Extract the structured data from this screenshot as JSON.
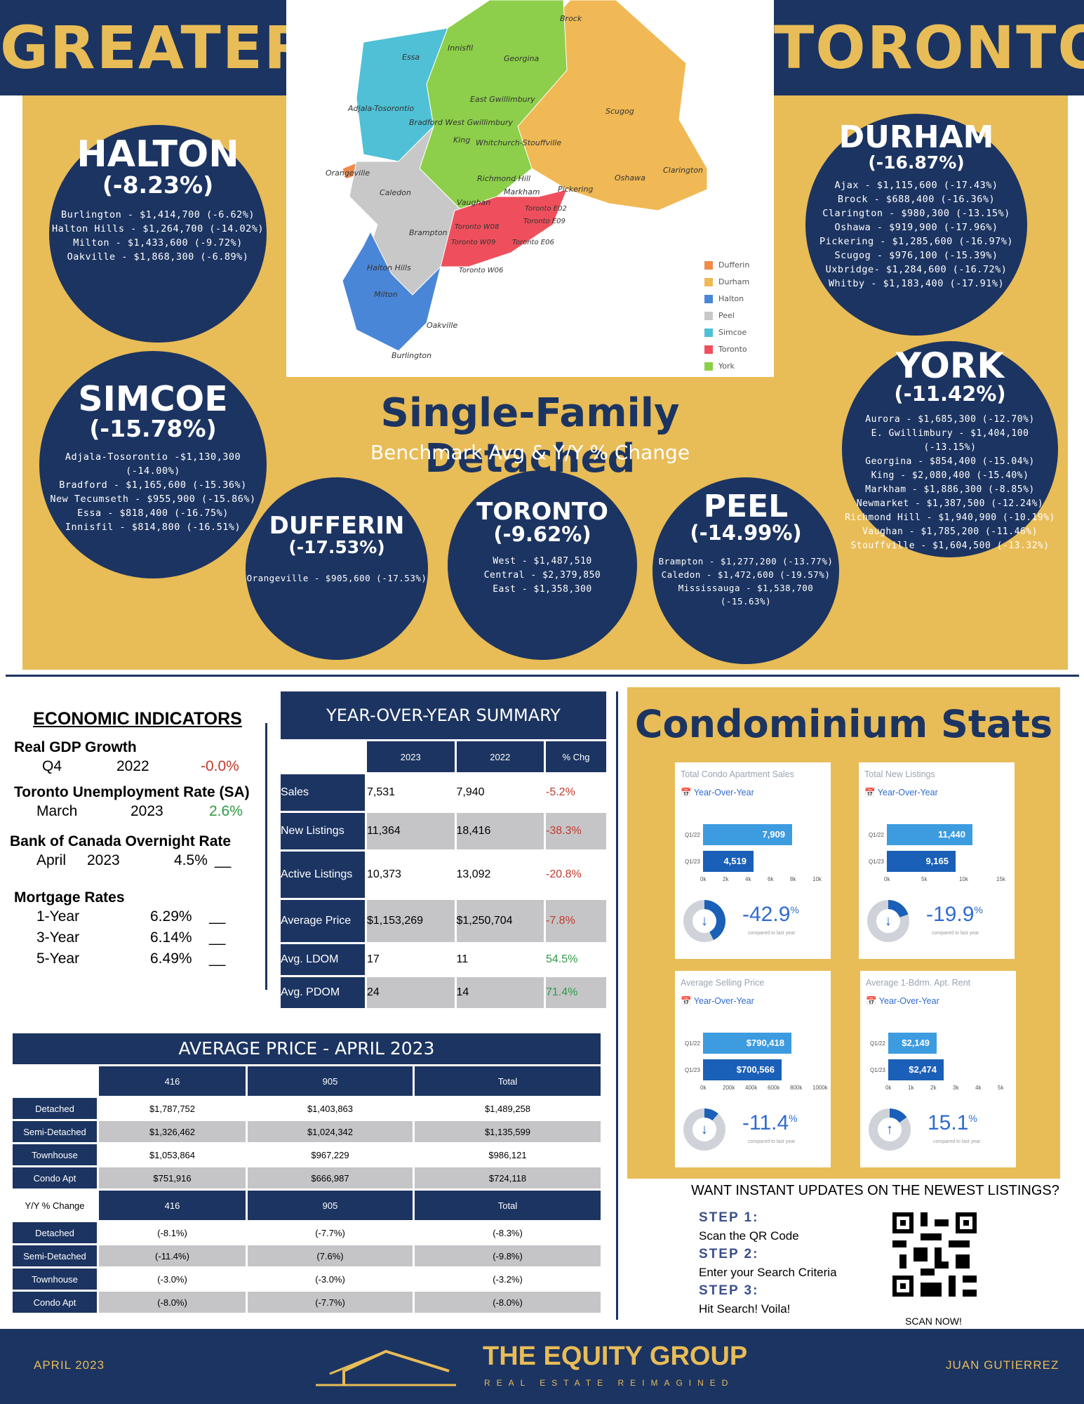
{
  "header": {
    "left_word": "GREATER",
    "right_word": "TORONTO"
  },
  "map": {
    "labels": [
      "Brock",
      "Innisfil",
      "Essa",
      "Georgina",
      "Adjala-Tosorontio",
      "East Gwillimbury",
      "Bradford West Gwillimbury",
      "Scugog",
      "King",
      "Whitchurch-Stouffville",
      "Orangeville",
      "Caledon",
      "Richmond Hill",
      "Markham",
      "Vaughan",
      "Pickering",
      "Oshawa",
      "Clarington",
      "Toronto E02",
      "Toronto E09",
      "Brampton",
      "Toronto W08",
      "Toronto W09",
      "Toronto E06",
      "Halton Hills",
      "Toronto W06",
      "Milton",
      "Oakville",
      "Burlington"
    ],
    "legend": [
      {
        "name": "Dufferin",
        "color": "#f08a4b"
      },
      {
        "name": "Durham",
        "color": "#f0b955"
      },
      {
        "name": "Halton",
        "color": "#4a86d8"
      },
      {
        "name": "Peel",
        "color": "#c8c8c8"
      },
      {
        "name": "Simcoe",
        "color": "#4fc0d6"
      },
      {
        "name": "Toronto",
        "color": "#ef4f5c"
      },
      {
        "name": "York",
        "color": "#8dcf4a"
      }
    ]
  },
  "sfd": {
    "title": "Single-Family Detached",
    "subtitle": "Benchmark Avg & Y/Y % Change"
  },
  "regions": {
    "halton": {
      "name": "HALTON",
      "pct": "(-8.23%)",
      "items": [
        "Burlington - $1,414,700 (-6.62%)",
        "Halton Hills - $1,264,700 (-14.02%)",
        "Milton - $1,433,600 (-9.72%)",
        "Oakville - $1,868,300 (-6.89%)"
      ]
    },
    "durham": {
      "name": "DURHAM",
      "pct": "(-16.87%)",
      "items": [
        "Ajax - $1,115,600 (-17.43%)",
        "Brock - $688,400 (-16.36%)",
        "Clarington - $980,300 (-13.15%)",
        "Oshawa - $919,900 (-17.96%)",
        "Pickering - $1,285,600 (-16.97%)",
        "Scugog - $976,100 (-15.39%)",
        "Uxbridge- $1,284,600 (-16.72%)",
        "Whitby - $1,183,400 (-17.91%)"
      ]
    },
    "simcoe": {
      "name": "SIMCOE",
      "pct": "(-15.78%)",
      "items": [
        "Adjala-Tosorontio -$1,130,300 (-14.00%)",
        "Bradford - $1,165,600 (-15.36%)",
        "New Tecumseth - $955,900 (-15.86%)",
        "Essa - $818,400 (-16.75%)",
        "Innisfil - $814,800 (-16.51%)"
      ]
    },
    "york": {
      "name": "YORK",
      "pct": "(-11.42%)",
      "items": [
        "Aurora - $1,685,300 (-12.70%)",
        "E. Gwillimbury - $1,404,100 (-13.15%)",
        "Georgina - $854,400 (-15.04%)",
        "King - $2,080,400 (-15.40%)",
        "Markham - $1,886,300 (-8.85%)",
        "Newmarket - $1,387,500 (-12.24%)",
        "Richmond Hill - $1,940,900 (-10.19%)",
        "Vaughan - $1,785,200 (-11.46%)",
        "Stouffville - $1,604,500 (-13.32%)"
      ]
    },
    "dufferin": {
      "name": "DUFFERIN",
      "pct": "(-17.53%)",
      "items": [
        "Orangeville - $905,600 (-17.53%)"
      ]
    },
    "toronto": {
      "name": "TORONTO",
      "pct": "(-9.62%)",
      "items": [
        "West - $1,487,510",
        "Central - $2,379,850",
        "East - $1,358,300"
      ]
    },
    "peel": {
      "name": "PEEL",
      "pct": "(-14.99%)",
      "items": [
        "Brampton - $1,277,200 (-13.77%)",
        "Caledon - $1,472,600 (-19.57%)",
        "Mississauga - $1,538,700 (-15.63%)"
      ]
    }
  },
  "economic": {
    "title": "ECONOMIC INDICATORS",
    "gdp": {
      "label": "Real GDP Growth",
      "period": "Q4",
      "year": "2022",
      "value": "-0.0%"
    },
    "unemployment": {
      "label": "Toronto Unemployment Rate (SA)",
      "period": "March",
      "year": "2023",
      "value": "2.6%"
    },
    "boc": {
      "label": "Bank of Canada Overnight Rate",
      "period": "April",
      "year": "2023",
      "value": "4.5%",
      "trend": "__"
    },
    "mortgage": {
      "label": "Mortgage Rates",
      "rows": [
        {
          "term": "1-Year",
          "rate": "6.29%",
          "trend": "__"
        },
        {
          "term": "3-Year",
          "rate": "6.14%",
          "trend": "__"
        },
        {
          "term": "5-Year",
          "rate": "6.49%",
          "trend": "__"
        }
      ]
    }
  },
  "yoy": {
    "title": "YEAR-OVER-YEAR SUMMARY",
    "headers": [
      "2023",
      "2022",
      "% Chg"
    ],
    "rows": [
      {
        "label": "Sales",
        "y2023": "7,531",
        "y2022": "7,940",
        "chg": "-5.2%"
      },
      {
        "label": "New Listings",
        "y2023": "11,364",
        "y2022": "18,416",
        "chg": "-38.3%"
      },
      {
        "label": "Active Listings",
        "y2023": "10,373",
        "y2022": "13,092",
        "chg": "-20.8%"
      },
      {
        "label": "Average Price",
        "y2023": "$1,153,269",
        "y2022": "$1,250,704",
        "chg": "-7.8%"
      },
      {
        "label": "Avg. LDOM",
        "y2023": "17",
        "y2022": "11",
        "chg": "54.5%"
      },
      {
        "label": "Avg. PDOM",
        "y2023": "24",
        "y2022": "14",
        "chg": "71.4%"
      }
    ]
  },
  "avg_price": {
    "title": "AVERAGE PRICE - APRIL 2023",
    "headers": [
      "416",
      "905",
      "Total"
    ],
    "rows": [
      {
        "label": "Detached",
        "a": "$1,787,752",
        "b": "$1,403,863",
        "c": "$1,489,258"
      },
      {
        "label": "Semi-Detached",
        "a": "$1,326,462",
        "b": "$1,024,342",
        "c": "$1,135,599"
      },
      {
        "label": "Townhouse",
        "a": "$1,053,864",
        "b": "$967,229",
        "c": "$986,121"
      },
      {
        "label": "Condo Apt",
        "a": "$751,916",
        "b": "$666,987",
        "c": "$724,118"
      }
    ],
    "yy_label": "Y/Y % Change",
    "yy_rows": [
      {
        "label": "Detached",
        "a": "(-8.1%)",
        "b": "(-7.7%)",
        "c": "(-8.3%)"
      },
      {
        "label": "Semi-Detached",
        "a": "(-11.4%)",
        "b": "(7.6%)",
        "c": "(-9.8%)"
      },
      {
        "label": "Townhouse",
        "a": "(-3.0%)",
        "b": "(-3.0%)",
        "c": "(-3.2%)"
      },
      {
        "label": "Condo Apt",
        "a": "(-8.0%)",
        "b": "(-7.7%)",
        "c": "(-8.0%)"
      }
    ]
  },
  "condo": {
    "title": "Condominium Stats",
    "yoy_label": "Year-Over-Year",
    "note": "compared to last year",
    "cards": [
      {
        "title": "Total Condo Apartment Sales",
        "bars": [
          {
            "label": "Q1/22",
            "value": 7909,
            "text": "7,909"
          },
          {
            "label": "Q1/23",
            "value": 4519,
            "text": "4,519"
          }
        ],
        "ticks": [
          "0k",
          "2k",
          "4k",
          "6k",
          "8k",
          "10k"
        ],
        "max": 10000,
        "pct": "-42.9",
        "pct_sign": "%",
        "direction": "down"
      },
      {
        "title": "Total New Listings",
        "bars": [
          {
            "label": "Q1/22",
            "value": 11440,
            "text": "11,440"
          },
          {
            "label": "Q1/23",
            "value": 9165,
            "text": "9,165"
          }
        ],
        "ticks": [
          "0k",
          "5k",
          "10k",
          "15k"
        ],
        "max": 15000,
        "pct": "-19.9",
        "pct_sign": "%",
        "direction": "down"
      },
      {
        "title": "Average Selling Price",
        "bars": [
          {
            "label": "Q1/22",
            "value": 790418,
            "text": "$790,418"
          },
          {
            "label": "Q1/23",
            "value": 700566,
            "text": "$700,566"
          }
        ],
        "ticks": [
          "0k",
          "200k",
          "400k",
          "600k",
          "800k",
          "1000k"
        ],
        "max": 1000000,
        "pct": "-11.4",
        "pct_sign": "%",
        "direction": "down"
      },
      {
        "title": "Average 1-Bdrm. Apt. Rent",
        "bars": [
          {
            "label": "Q1/22",
            "value": 2149,
            "text": "$2,149"
          },
          {
            "label": "Q1/23",
            "value": 2474,
            "text": "$2,474"
          }
        ],
        "ticks": [
          "0k",
          "1k",
          "2k",
          "3k",
          "4k",
          "5k"
        ],
        "max": 5000,
        "pct": "15.1",
        "pct_sign": "%",
        "direction": "up"
      }
    ]
  },
  "cta": {
    "title": "WANT INSTANT UPDATES ON THE NEWEST LISTINGS?",
    "steps": [
      {
        "head": "STEP 1:",
        "text": "Scan the QR Code"
      },
      {
        "head": "STEP 2:",
        "text": "Enter your Search Criteria"
      },
      {
        "head": "STEP 3:",
        "text": "Hit Search! Voila!"
      }
    ],
    "scan": "SCAN NOW!"
  },
  "footer": {
    "date": "APRIL 2023",
    "brand": "THE EQUITY GROUP",
    "tagline": "REAL ESTATE REIMAGINED",
    "agent": "JUAN GUTIERREZ"
  },
  "colors": {
    "navy": "#1c3461",
    "gold": "#e8bc57",
    "negative": "#c0392b",
    "positive": "#2f9a43",
    "bar_light": "#3d9be0",
    "bar_dark": "#1a5fb8"
  }
}
